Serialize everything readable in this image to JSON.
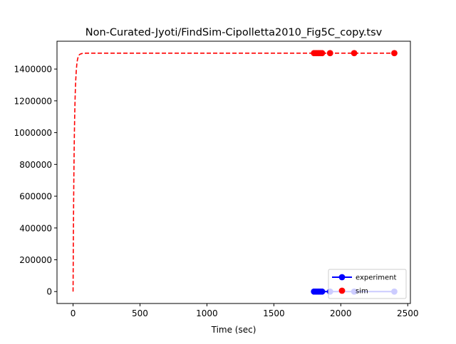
{
  "chart_data": {
    "type": "line",
    "title": "Non-Curated-Jyoti/FindSim-Cipolletta2010_Fig5C_copy.tsv",
    "xlabel": "Time (sec)",
    "ylabel": "",
    "xlim": [
      -120,
      2520
    ],
    "ylim": [
      -75000,
      1575000
    ],
    "x_ticks": [
      0,
      500,
      1000,
      1500,
      2000,
      2500
    ],
    "y_ticks": [
      0,
      200000,
      400000,
      600000,
      800000,
      1000000,
      1200000,
      1400000
    ],
    "grid": false,
    "legend_position": "lower-right",
    "series": [
      {
        "name": "experiment",
        "color": "#0000ff",
        "style": "solid-line-with-markers",
        "x": [
          1800,
          1815,
          1830,
          1845,
          1860,
          1920,
          2100,
          2400
        ],
        "y": [
          0,
          0,
          0,
          0,
          0,
          0,
          0,
          0
        ]
      },
      {
        "name": "sim",
        "color": "#ff0000",
        "style": "markers",
        "x": [
          1800,
          1815,
          1830,
          1845,
          1860,
          1920,
          2100,
          2400
        ],
        "y": [
          1500000,
          1500000,
          1500000,
          1500000,
          1500000,
          1500000,
          1500000,
          1500000
        ]
      },
      {
        "name": "",
        "color": "#ff0000",
        "style": "dashed-line",
        "x": [
          0,
          2,
          4,
          6,
          8,
          10,
          12,
          14,
          16,
          18,
          20,
          24,
          28,
          32,
          36,
          40,
          45,
          50,
          60,
          70,
          80,
          100,
          150,
          300,
          600,
          1000,
          1500,
          2000,
          2400
        ],
        "y": [
          0,
          300000,
          540000,
          730000,
          880000,
          1000000,
          1100000,
          1175000,
          1240000,
          1290000,
          1330000,
          1390000,
          1430000,
          1455000,
          1470000,
          1480000,
          1488000,
          1492000,
          1496000,
          1498000,
          1499000,
          1500000,
          1500000,
          1500000,
          1500000,
          1500000,
          1500000,
          1500000,
          1500000
        ]
      }
    ]
  }
}
